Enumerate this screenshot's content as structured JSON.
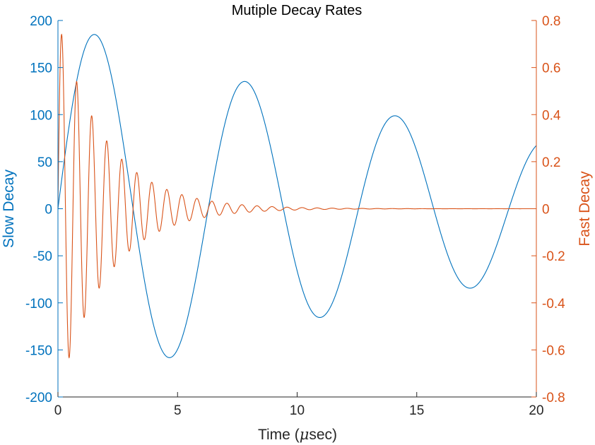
{
  "chart_data": {
    "type": "line",
    "title": "Mutiple Decay Rates",
    "xlabel_prefix": "Time (",
    "xlabel_mu": "μ",
    "xlabel_suffix": "sec)",
    "x_ticks": [
      "0",
      "5",
      "10",
      "15",
      "20"
    ],
    "xlim": [
      0,
      20
    ],
    "left_axis": {
      "label": "Slow Decay",
      "color": "#0072BD",
      "ylim": [
        -200,
        200
      ],
      "ticks": [
        "200",
        "150",
        "100",
        "50",
        "0",
        "-50",
        "-100",
        "-150",
        "-200"
      ]
    },
    "right_axis": {
      "label": "Fast Decay",
      "color": "#D95319",
      "ylim": [
        -0.8,
        0.8
      ],
      "ticks": [
        "0.8",
        "0.6",
        "0.4",
        "0.2",
        "0",
        "-0.2",
        "-0.4",
        "-0.6",
        "-0.8"
      ]
    },
    "series": [
      {
        "axis": "left",
        "color": "#0072BD",
        "description": "y = 200 * exp(-0.05 x) * sin(x)",
        "amplitude": 200,
        "decay": 0.05,
        "frequency": 1,
        "x_range": [
          0,
          20
        ]
      },
      {
        "axis": "right",
        "color": "#D95319",
        "description": "y = 0.8 * exp(-0.5 x) * sin(10 x)",
        "amplitude": 0.8,
        "decay": 0.5,
        "frequency": 10,
        "x_range": [
          0,
          20
        ]
      }
    ],
    "grid": false,
    "legend": "none"
  }
}
